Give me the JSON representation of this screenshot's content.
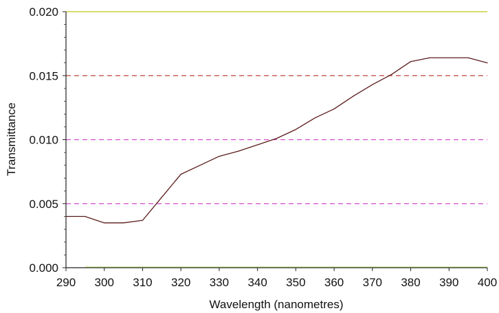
{
  "chart_data": {
    "type": "line",
    "title": "",
    "xlabel": "Wavelength (nanometres)",
    "ylabel": "Transmittance",
    "xlim": [
      290,
      400
    ],
    "ylim": [
      0,
      0.02
    ],
    "x_ticks": [
      "290",
      "300",
      "310",
      "320",
      "330",
      "340",
      "350",
      "360",
      "370",
      "380",
      "390",
      "400"
    ],
    "y_ticks": [
      "0.000",
      "0.005",
      "0.010",
      "0.015",
      "0.020"
    ],
    "grid": "horizontal dashed lines at 0.005, 0.010, 0.015",
    "legend": "none",
    "colors": {
      "line": "#5a1a1a",
      "grid_005": "#d24ad2",
      "grid_010": "#d24ad2",
      "grid_015": "#c0403a",
      "top_border": "#c8d040",
      "axis": "#222222"
    },
    "series": [
      {
        "x": [
          290,
          295,
          300,
          305,
          310,
          315,
          320,
          325,
          330,
          335,
          340,
          345,
          350,
          355,
          360,
          365,
          370,
          375,
          380,
          385,
          390,
          395,
          400
        ],
        "y": [
          0.004,
          0.004,
          0.0035,
          0.0035,
          0.0037,
          0.0055,
          0.0073,
          0.008,
          0.0087,
          0.0091,
          0.0096,
          0.0101,
          0.0108,
          0.0117,
          0.0124,
          0.0134,
          0.0143,
          0.0151,
          0.0161,
          0.0164,
          0.0164,
          0.0164,
          0.016
        ]
      }
    ]
  }
}
